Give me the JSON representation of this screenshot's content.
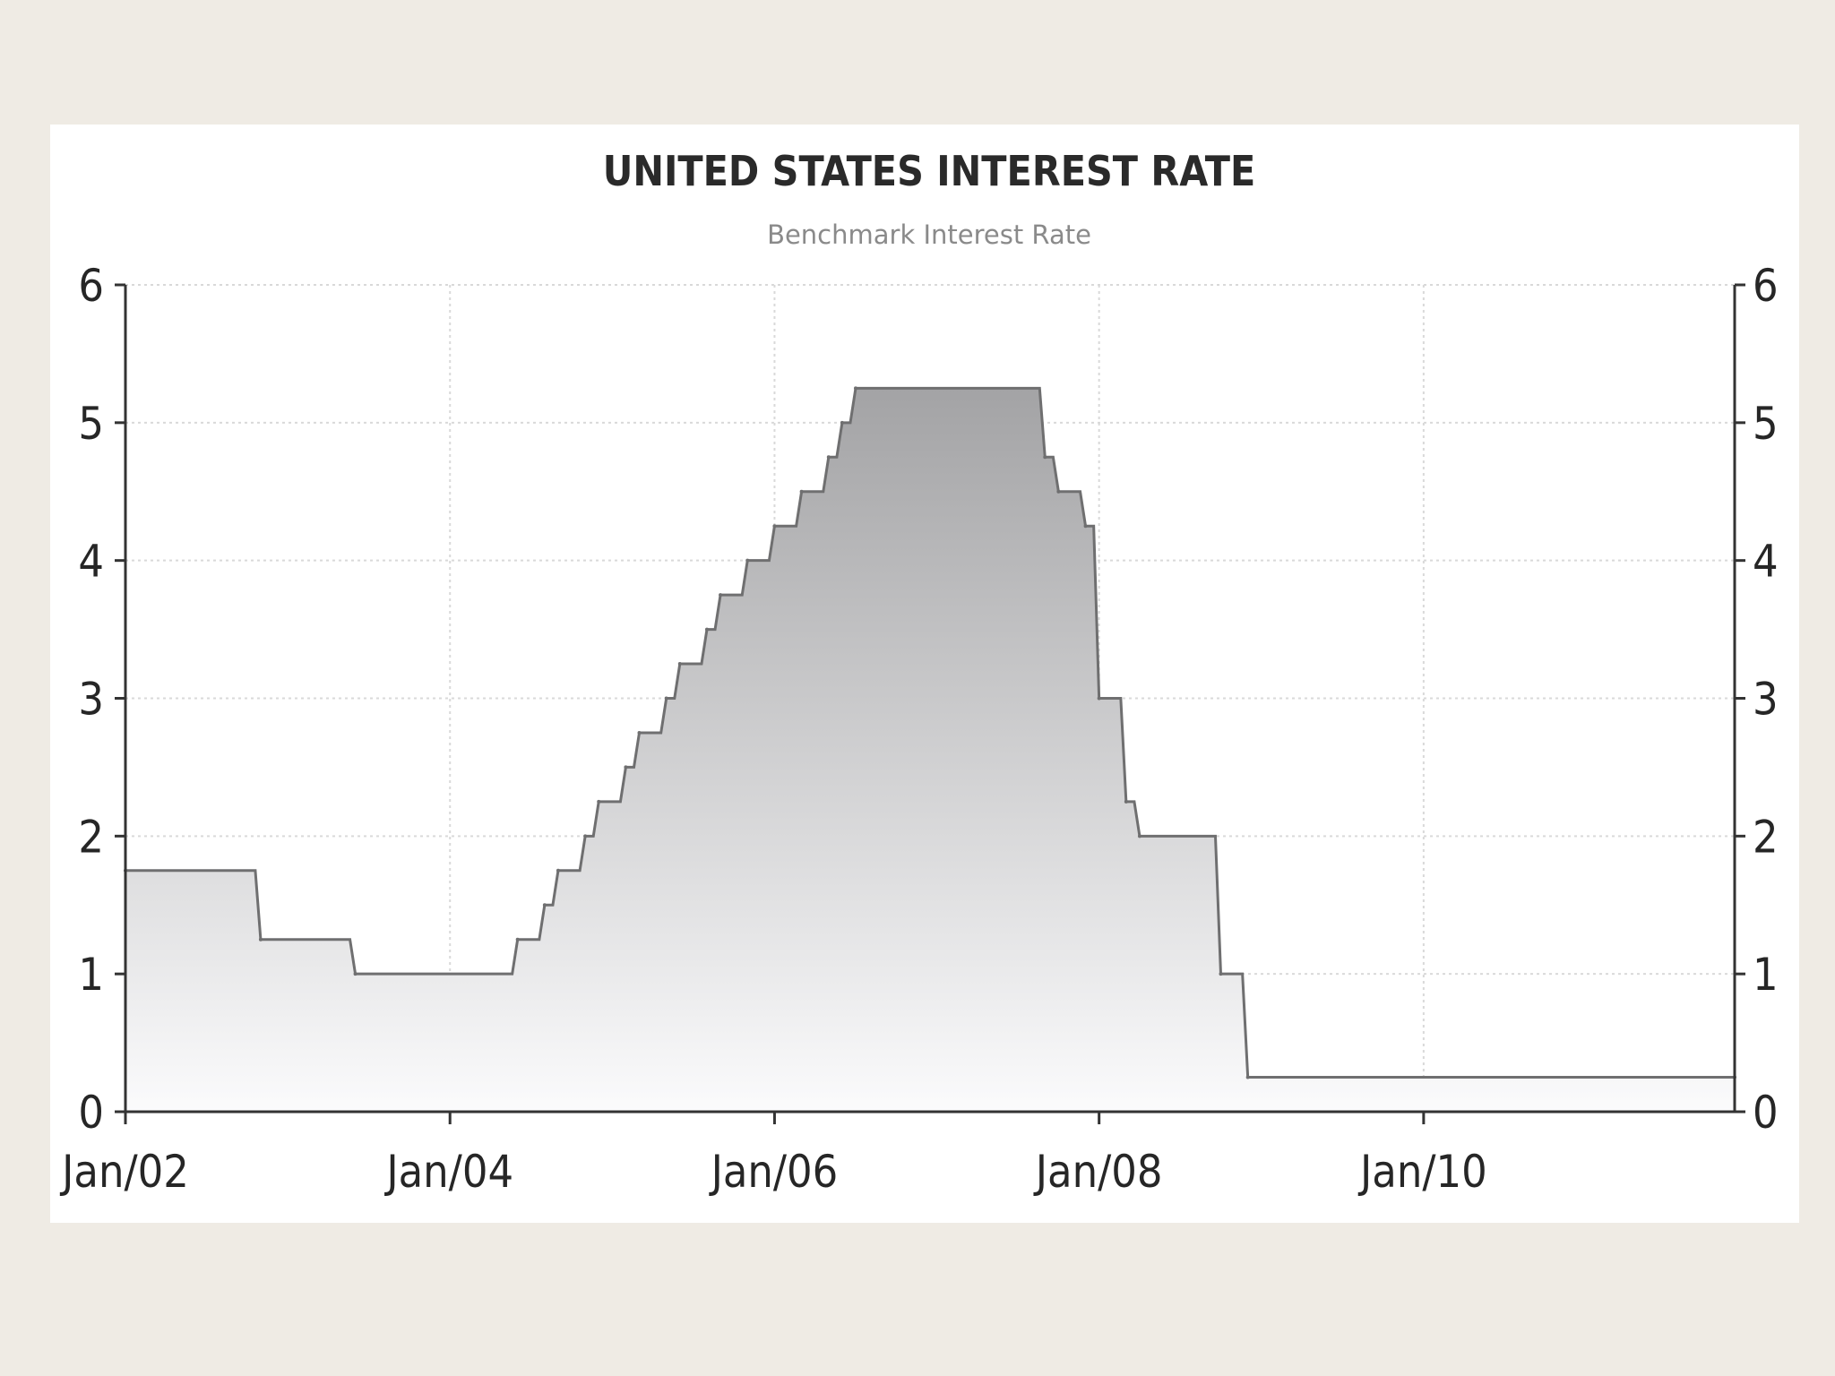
{
  "chart_data": {
    "type": "area",
    "title": "UNITED STATES INTEREST RATE",
    "subtitle": "Benchmark Interest Rate",
    "xlabel": "",
    "ylabel": "",
    "ylim": [
      0,
      6
    ],
    "xlim": [
      "2002-01",
      "2011-12"
    ],
    "y_ticks": [
      "0",
      "1",
      "2",
      "3",
      "4",
      "5",
      "6"
    ],
    "x_ticks": [
      {
        "date": "2002-01",
        "label": "Jan/02"
      },
      {
        "date": "2004-01",
        "label": "Jan/04"
      },
      {
        "date": "2006-01",
        "label": "Jan/06"
      },
      {
        "date": "2008-01",
        "label": "Jan/08"
      },
      {
        "date": "2010-01",
        "label": "Jan/10"
      }
    ],
    "grid": true,
    "step": true,
    "fill": "gradient-gray",
    "points": [
      {
        "date": "2002-01",
        "value": 1.75
      },
      {
        "date": "2002-11",
        "value": 1.25
      },
      {
        "date": "2003-06",
        "value": 1.0
      },
      {
        "date": "2004-06",
        "value": 1.25
      },
      {
        "date": "2004-08",
        "value": 1.5
      },
      {
        "date": "2004-09",
        "value": 1.75
      },
      {
        "date": "2004-11",
        "value": 2.0
      },
      {
        "date": "2004-12",
        "value": 2.25
      },
      {
        "date": "2005-02",
        "value": 2.5
      },
      {
        "date": "2005-03",
        "value": 2.75
      },
      {
        "date": "2005-05",
        "value": 3.0
      },
      {
        "date": "2005-06",
        "value": 3.25
      },
      {
        "date": "2005-08",
        "value": 3.5
      },
      {
        "date": "2005-09",
        "value": 3.75
      },
      {
        "date": "2005-11",
        "value": 4.0
      },
      {
        "date": "2006-01",
        "value": 4.25
      },
      {
        "date": "2006-03",
        "value": 4.5
      },
      {
        "date": "2006-05",
        "value": 4.75
      },
      {
        "date": "2006-06",
        "value": 5.0
      },
      {
        "date": "2006-07",
        "value": 5.25
      },
      {
        "date": "2007-09",
        "value": 4.75
      },
      {
        "date": "2007-10",
        "value": 4.5
      },
      {
        "date": "2007-12",
        "value": 4.25
      },
      {
        "date": "2008-01",
        "value": 3.0
      },
      {
        "date": "2008-03",
        "value": 2.25
      },
      {
        "date": "2008-04",
        "value": 2.0
      },
      {
        "date": "2008-10",
        "value": 1.0
      },
      {
        "date": "2008-12",
        "value": 0.25
      },
      {
        "date": "2011-12",
        "value": 0.25
      }
    ]
  }
}
